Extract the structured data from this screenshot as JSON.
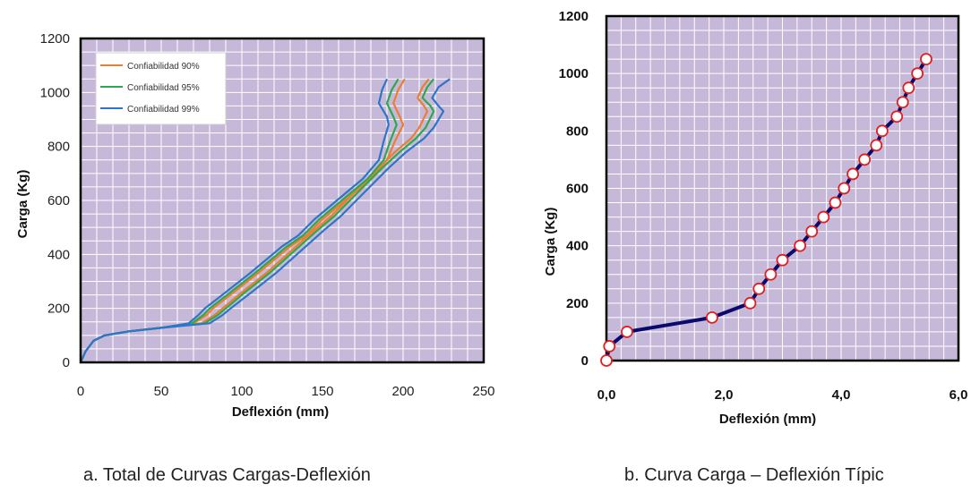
{
  "captions": {
    "a": "a. Total de Curvas Cargas-Deflexión",
    "b": "b. Curva Carga – Deflexión Típic"
  },
  "chart_data": [
    {
      "type": "line",
      "xlabel": "Deflexión (mm)",
      "ylabel": "Carga (Kg)",
      "xlim": [
        0,
        250
      ],
      "ylim": [
        0,
        1200
      ],
      "xticks": [
        "0",
        "50",
        "100",
        "150",
        "200",
        "250"
      ],
      "yticks": [
        "0",
        "200",
        "400",
        "600",
        "800",
        "1000",
        "1200"
      ],
      "grid": true,
      "legend_position": "top-left",
      "plot_bg": "#c6b8d9",
      "series": [
        {
          "name": "Confiabilidad 90%",
          "color": "#ed7d31",
          "curves": [
            {
              "x": [
                0,
                3,
                8,
                15,
                30,
                50,
                70,
                78,
                82,
                95,
                110,
                120,
                130,
                140,
                150,
                160,
                170,
                180,
                190,
                195,
                200,
                198,
                194,
                197,
                201
              ],
              "y": [
                0,
                40,
                80,
                100,
                115,
                128,
                145,
                175,
                200,
                260,
                330,
                380,
                430,
                470,
                530,
                580,
                630,
                680,
                750,
                820,
                880,
                910,
                960,
                1010,
                1050
              ]
            },
            {
              "x": [
                0,
                3,
                8,
                15,
                30,
                50,
                75,
                83,
                88,
                100,
                115,
                130,
                145,
                155,
                165,
                175,
                185,
                195,
                205,
                210,
                215,
                213,
                209,
                212,
                216
              ],
              "y": [
                0,
                40,
                80,
                100,
                115,
                128,
                145,
                175,
                200,
                260,
                330,
                410,
                490,
                540,
                600,
                660,
                720,
                780,
                830,
                870,
                930,
                950,
                980,
                1020,
                1050
              ]
            }
          ]
        },
        {
          "name": "Confiabilidad 95%",
          "color": "#2ea84e",
          "curves": [
            {
              "x": [
                0,
                3,
                8,
                15,
                30,
                50,
                69,
                76,
                80,
                93,
                108,
                118,
                128,
                138,
                148,
                158,
                168,
                178,
                188,
                192,
                196,
                194,
                190,
                193,
                197
              ],
              "y": [
                0,
                40,
                80,
                100,
                115,
                128,
                145,
                175,
                200,
                260,
                330,
                380,
                430,
                470,
                530,
                580,
                630,
                680,
                750,
                820,
                880,
                910,
                960,
                1010,
                1050
              ]
            },
            {
              "x": [
                0,
                3,
                8,
                15,
                30,
                50,
                77,
                85,
                90,
                102,
                117,
                132,
                147,
                157,
                167,
                177,
                187,
                198,
                208,
                214,
                219,
                217,
                212,
                215,
                219
              ],
              "y": [
                0,
                40,
                80,
                100,
                115,
                128,
                145,
                175,
                200,
                260,
                330,
                410,
                490,
                540,
                600,
                660,
                720,
                780,
                830,
                870,
                930,
                950,
                980,
                1020,
                1050
              ]
            }
          ]
        },
        {
          "name": "Confiabilidad 99%",
          "color": "#2e75c7",
          "curves": [
            {
              "x": [
                0,
                3,
                8,
                15,
                30,
                50,
                67,
                73,
                77,
                90,
                105,
                115,
                125,
                135,
                145,
                155,
                165,
                175,
                185,
                188,
                191,
                190,
                185,
                187,
                190
              ],
              "y": [
                0,
                40,
                80,
                100,
                115,
                128,
                145,
                175,
                200,
                260,
                330,
                380,
                430,
                470,
                530,
                580,
                630,
                680,
                750,
                820,
                880,
                910,
                960,
                1010,
                1050
              ]
            },
            {
              "x": [
                0,
                3,
                8,
                15,
                30,
                50,
                80,
                88,
                93,
                106,
                121,
                136,
                151,
                161,
                171,
                181,
                191,
                202,
                213,
                219,
                225,
                222,
                218,
                222,
                229
              ],
              "y": [
                0,
                40,
                80,
                100,
                115,
                128,
                145,
                175,
                200,
                260,
                330,
                410,
                490,
                540,
                600,
                660,
                720,
                780,
                830,
                870,
                930,
                950,
                980,
                1020,
                1050
              ]
            }
          ]
        }
      ]
    },
    {
      "type": "line",
      "xlabel": "Deflexión (mm)",
      "ylabel": "Carga (Kg)",
      "xlim": [
        0,
        6
      ],
      "ylim": [
        0,
        1200
      ],
      "xticks": [
        "0,0",
        "2,0",
        "4,0",
        "6,0"
      ],
      "yticks": [
        "0",
        "200",
        "400",
        "600",
        "800",
        "1000",
        "1200"
      ],
      "grid": true,
      "plot_bg": "#c6b8d9",
      "line_color": "#0a0a6e",
      "marker_color": "#e02020",
      "x": [
        0.0,
        0.05,
        0.35,
        1.8,
        2.45,
        2.6,
        2.8,
        3.0,
        3.3,
        3.5,
        3.7,
        3.9,
        4.05,
        4.2,
        4.4,
        4.6,
        4.7,
        4.95,
        5.05,
        5.15,
        5.3,
        5.45
      ],
      "y": [
        0,
        50,
        100,
        150,
        200,
        250,
        300,
        350,
        400,
        450,
        500,
        550,
        600,
        650,
        700,
        750,
        800,
        850,
        900,
        950,
        1000,
        1050
      ]
    }
  ]
}
